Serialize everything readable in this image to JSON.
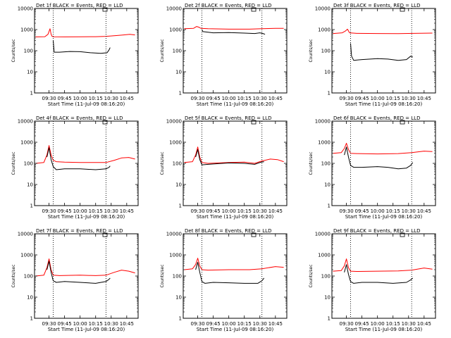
{
  "figure": {
    "background": "#ffffff",
    "axis_color": "#000000"
  },
  "chart_data": [
    {
      "type": "line",
      "title": "Det 1f BLACK = Events, RED = LLD",
      "xlabel": "Start Time (11-Jul-09 08:16:20)",
      "ylabel": "Counts/sec",
      "x_ticks": [
        "09:30",
        "09:45",
        "10:00",
        "10:15",
        "10:30",
        "10:45"
      ],
      "y_ticks": [
        "1",
        "10",
        "100",
        "1000",
        "10000"
      ],
      "xlim": [
        "09:16",
        "10:56"
      ],
      "ylim": [
        1,
        10000
      ],
      "y_scale": "log",
      "markers": [
        "09:34",
        "10:25"
      ],
      "series": [
        {
          "name": "LLD",
          "color": "#ff0000",
          "x": [
            "09:17",
            "09:26",
            "09:29",
            "09:31",
            "09:32",
            "09:33",
            "09:35",
            "09:45",
            "10:00",
            "10:15",
            "10:25",
            "10:35",
            "10:42",
            "10:48",
            "10:53"
          ],
          "y": [
            450,
            460,
            600,
            1100,
            600,
            470,
            455,
            450,
            455,
            460,
            480,
            520,
            560,
            600,
            560
          ]
        },
        {
          "name": "Events",
          "color": "#000000",
          "x": [
            "09:34",
            "09:35",
            "09:40",
            "09:50",
            "10:00",
            "10:10",
            "10:20",
            "10:26",
            "10:28",
            "10:29"
          ],
          "y": [
            300,
            85,
            85,
            92,
            90,
            80,
            75,
            80,
            110,
            140
          ]
        }
      ]
    },
    {
      "type": "line",
      "title": "Det 2f BLACK = Events, RED = LLD",
      "xlabel": "Start Time (11-Jul-09 08:16:20)",
      "ylabel": "Counts/sec",
      "x_ticks": [
        "09:30",
        "09:45",
        "10:00",
        "10:15",
        "10:30",
        "10:45"
      ],
      "y_ticks": [
        "1",
        "10",
        "100",
        "1000",
        "10000"
      ],
      "xlim": [
        "09:16",
        "10:56"
      ],
      "ylim": [
        1,
        10000
      ],
      "y_scale": "log",
      "markers": [
        "09:34",
        "10:32"
      ],
      "series": [
        {
          "name": "LLD",
          "color": "#ff0000",
          "x": [
            "09:17",
            "09:26",
            "09:29",
            "09:31",
            "09:33",
            "09:40",
            "10:00",
            "10:20",
            "10:32",
            "10:45",
            "10:53"
          ],
          "y": [
            1100,
            1150,
            1400,
            1300,
            1150,
            1100,
            1050,
            1050,
            1100,
            1150,
            1150
          ]
        },
        {
          "name": "Events",
          "color": "#000000",
          "x": [
            "09:34",
            "09:35",
            "09:45",
            "10:00",
            "10:15",
            "10:25",
            "10:30",
            "10:33",
            "10:35"
          ],
          "y": [
            1000,
            800,
            700,
            720,
            680,
            650,
            700,
            650,
            600
          ]
        }
      ]
    },
    {
      "type": "line",
      "title": "Det 3f BLACK = Events, RED = LLD",
      "xlabel": "Start Time (11-Jul-09 08:16:20)",
      "ylabel": "Counts/sec",
      "x_ticks": [
        "09:30",
        "09:45",
        "10:00",
        "10:15",
        "10:30",
        "10:45"
      ],
      "y_ticks": [
        "1",
        "10",
        "100",
        "1000",
        "10000"
      ],
      "xlim": [
        "09:16",
        "10:56"
      ],
      "ylim": [
        1,
        10000
      ],
      "y_scale": "log",
      "markers": [
        "09:34",
        "10:33"
      ],
      "series": [
        {
          "name": "LLD",
          "color": "#ff0000",
          "x": [
            "09:17",
            "09:26",
            "09:29",
            "09:31",
            "09:33",
            "09:40",
            "10:00",
            "10:20",
            "10:35",
            "10:53"
          ],
          "y": [
            650,
            700,
            850,
            1050,
            700,
            660,
            650,
            640,
            660,
            680
          ]
        },
        {
          "name": "Events",
          "color": "#000000",
          "x": [
            "09:34",
            "09:35",
            "09:37",
            "09:45",
            "10:00",
            "10:10",
            "10:20",
            "10:28",
            "10:32",
            "10:34"
          ],
          "y": [
            220,
            55,
            35,
            38,
            42,
            40,
            35,
            38,
            55,
            50
          ]
        }
      ]
    },
    {
      "type": "line",
      "title": "Det 4f BLACK = Events, RED = LLD",
      "xlabel": "Start Time (11-Jul-09 08:16:20)",
      "ylabel": "Counts/sec",
      "x_ticks": [
        "09:30",
        "09:45",
        "10:00",
        "10:15",
        "10:30",
        "10:45"
      ],
      "y_ticks": [
        "1",
        "10",
        "100",
        "1000",
        "10000"
      ],
      "xlim": [
        "09:16",
        "10:56"
      ],
      "ylim": [
        1,
        10000
      ],
      "y_scale": "log",
      "markers": [
        "09:34",
        "10:25"
      ],
      "series": [
        {
          "name": "LLD",
          "color": "#ff0000",
          "x": [
            "09:17",
            "09:25",
            "09:28",
            "09:30",
            "09:32",
            "09:34",
            "09:37",
            "09:45",
            "10:00",
            "10:15",
            "10:25",
            "10:33",
            "10:40",
            "10:47",
            "10:53"
          ],
          "y": [
            100,
            110,
            250,
            700,
            250,
            140,
            120,
            115,
            110,
            110,
            110,
            140,
            180,
            190,
            160
          ]
        },
        {
          "name": "Events",
          "color": "#000000",
          "x": [
            "09:28",
            "09:30",
            "09:32",
            "09:34",
            "09:37",
            "09:45",
            "10:00",
            "10:15",
            "10:25",
            "10:28",
            "10:29"
          ],
          "y": [
            200,
            550,
            150,
            70,
            50,
            55,
            55,
            50,
            55,
            65,
            75
          ]
        }
      ]
    },
    {
      "type": "line",
      "title": "Det 5f BLACK = Events, RED = LLD",
      "xlabel": "Start Time (11-Jul-09 08:16:20)",
      "ylabel": "Counts/sec",
      "x_ticks": [
        "09:30",
        "09:45",
        "10:00",
        "10:15",
        "10:30",
        "10:45"
      ],
      "y_ticks": [
        "1",
        "10",
        "100",
        "1000",
        "10000"
      ],
      "xlim": [
        "09:16",
        "10:56"
      ],
      "ylim": [
        1,
        10000
      ],
      "y_scale": "log",
      "markers": [
        "09:34",
        "10:32"
      ],
      "series": [
        {
          "name": "LLD",
          "color": "#ff0000",
          "x": [
            "09:17",
            "09:25",
            "09:28",
            "09:30",
            "09:32",
            "09:34",
            "09:40",
            "10:00",
            "10:15",
            "10:25",
            "10:32",
            "10:40",
            "10:47",
            "10:53"
          ],
          "y": [
            110,
            120,
            250,
            600,
            200,
            110,
            100,
            110,
            115,
            100,
            130,
            160,
            150,
            120
          ]
        },
        {
          "name": "Events",
          "color": "#000000",
          "x": [
            "09:28",
            "09:30",
            "09:32",
            "09:34",
            "09:40",
            "10:00",
            "10:15",
            "10:25",
            "10:30",
            "10:34"
          ],
          "y": [
            200,
            450,
            150,
            85,
            90,
            105,
            100,
            90,
            110,
            120
          ]
        }
      ]
    },
    {
      "type": "line",
      "title": "Det 6f BLACK = Events, RED = LLD",
      "xlabel": "Start Time (11-Jul-09 08:16:20)",
      "ylabel": "Counts/sec",
      "x_ticks": [
        "09:30",
        "09:45",
        "10:00",
        "10:15",
        "10:30",
        "10:45"
      ],
      "y_ticks": [
        "1",
        "10",
        "100",
        "1000",
        "10000"
      ],
      "xlim": [
        "09:16",
        "10:56"
      ],
      "ylim": [
        1,
        10000
      ],
      "y_scale": "log",
      "markers": [
        "09:34",
        "10:33"
      ],
      "series": [
        {
          "name": "LLD",
          "color": "#ff0000",
          "x": [
            "09:17",
            "09:25",
            "09:28",
            "09:30",
            "09:32",
            "09:34",
            "09:40",
            "10:00",
            "10:20",
            "10:33",
            "10:45",
            "10:53"
          ],
          "y": [
            300,
            320,
            500,
            900,
            450,
            300,
            290,
            280,
            290,
            320,
            380,
            360
          ]
        },
        {
          "name": "Events",
          "color": "#000000",
          "x": [
            "09:28",
            "09:30",
            "09:32",
            "09:34",
            "09:37",
            "09:45",
            "10:00",
            "10:10",
            "10:20",
            "10:28",
            "10:32",
            "10:34"
          ],
          "y": [
            250,
            600,
            200,
            80,
            65,
            65,
            70,
            65,
            55,
            60,
            80,
            110
          ]
        }
      ]
    },
    {
      "type": "line",
      "title": "Det 7f BLACK = Events, RED = LLD",
      "xlabel": "Start Time (11-Jul-09 08:16:20)",
      "ylabel": "Counts/sec",
      "x_ticks": [
        "09:30",
        "09:45",
        "10:00",
        "10:15",
        "10:30",
        "10:45"
      ],
      "y_ticks": [
        "1",
        "10",
        "100",
        "1000",
        "10000"
      ],
      "xlim": [
        "09:16",
        "10:56"
      ],
      "ylim": [
        1,
        10000
      ],
      "y_scale": "log",
      "markers": [
        "09:34",
        "10:25"
      ],
      "series": [
        {
          "name": "LLD",
          "color": "#ff0000",
          "x": [
            "09:17",
            "09:25",
            "09:28",
            "09:30",
            "09:32",
            "09:34",
            "09:40",
            "10:00",
            "10:15",
            "10:25",
            "10:33",
            "10:40",
            "10:47",
            "10:53"
          ],
          "y": [
            100,
            110,
            250,
            650,
            200,
            110,
            105,
            110,
            105,
            110,
            150,
            190,
            170,
            140
          ]
        },
        {
          "name": "Events",
          "color": "#000000",
          "x": [
            "09:28",
            "09:30",
            "09:32",
            "09:34",
            "09:37",
            "09:45",
            "10:00",
            "10:15",
            "10:25",
            "10:28",
            "10:29"
          ],
          "y": [
            200,
            500,
            150,
            60,
            50,
            55,
            50,
            45,
            55,
            70,
            80
          ]
        }
      ]
    },
    {
      "type": "line",
      "title": "Det 8f BLACK = Events, RED = LLD",
      "xlabel": "Start Time (11-Jul-09 08:16:20)",
      "ylabel": "Counts/sec",
      "x_ticks": [
        "09:30",
        "09:45",
        "10:00",
        "10:15",
        "10:30",
        "10:45"
      ],
      "y_ticks": [
        "1",
        "10",
        "100",
        "1000",
        "10000"
      ],
      "xlim": [
        "09:16",
        "10:56"
      ],
      "ylim": [
        1,
        10000
      ],
      "y_scale": "log",
      "markers": [
        "09:34",
        "10:32"
      ],
      "series": [
        {
          "name": "LLD",
          "color": "#ff0000",
          "x": [
            "09:17",
            "09:25",
            "09:28",
            "09:30",
            "09:32",
            "09:34",
            "09:40",
            "10:00",
            "10:20",
            "10:32",
            "10:45",
            "10:53"
          ],
          "y": [
            200,
            220,
            350,
            700,
            300,
            200,
            190,
            200,
            200,
            220,
            280,
            260
          ]
        },
        {
          "name": "Events",
          "color": "#000000",
          "x": [
            "09:28",
            "09:30",
            "09:32",
            "09:34",
            "09:37",
            "09:45",
            "10:00",
            "10:15",
            "10:28",
            "10:32",
            "10:34"
          ],
          "y": [
            200,
            450,
            150,
            55,
            45,
            50,
            48,
            45,
            45,
            60,
            80
          ]
        }
      ]
    },
    {
      "type": "line",
      "title": "Det 9f BLACK = Events, RED = LLD",
      "xlabel": "Start Time (11-Jul-09 08:16:20)",
      "ylabel": "Counts/sec",
      "x_ticks": [
        "09:30",
        "09:45",
        "10:00",
        "10:15",
        "10:30",
        "10:45"
      ],
      "y_ticks": [
        "1",
        "10",
        "100",
        "1000",
        "10000"
      ],
      "xlim": [
        "09:16",
        "10:56"
      ],
      "ylim": [
        1,
        10000
      ],
      "y_scale": "log",
      "markers": [
        "09:34",
        "10:33"
      ],
      "series": [
        {
          "name": "LLD",
          "color": "#ff0000",
          "x": [
            "09:17",
            "09:25",
            "09:28",
            "09:30",
            "09:32",
            "09:34",
            "09:40",
            "10:00",
            "10:20",
            "10:33",
            "10:45",
            "10:53"
          ],
          "y": [
            170,
            180,
            300,
            650,
            250,
            170,
            165,
            170,
            175,
            190,
            240,
            210
          ]
        },
        {
          "name": "Events",
          "color": "#000000",
          "x": [
            "09:28",
            "09:30",
            "09:32",
            "09:34",
            "09:37",
            "09:45",
            "10:00",
            "10:15",
            "10:28",
            "10:32",
            "10:34"
          ],
          "y": [
            150,
            350,
            120,
            55,
            45,
            50,
            50,
            45,
            50,
            65,
            80
          ]
        }
      ]
    }
  ]
}
